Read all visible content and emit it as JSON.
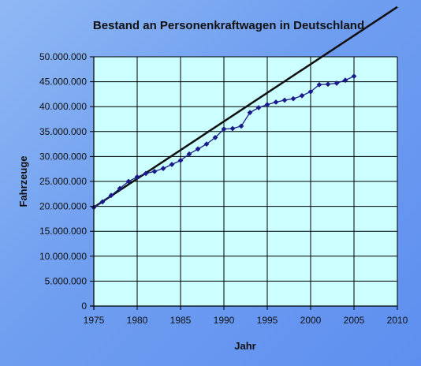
{
  "chart_data": {
    "type": "line",
    "title": "Bestand an Personenkraftwagen in Deutschland",
    "xlabel": "Jahr",
    "ylabel": "Fahrzeuge",
    "xlim": [
      1975,
      2010
    ],
    "ylim": [
      0,
      50000000
    ],
    "x_ticks": [
      1975,
      1980,
      1985,
      1990,
      1995,
      2000,
      2005,
      2010
    ],
    "y_ticks": [
      0,
      5000000,
      10000000,
      15000000,
      20000000,
      25000000,
      30000000,
      35000000,
      40000000,
      45000000,
      50000000
    ],
    "x_tick_labels": [
      "1975",
      "1980",
      "1985",
      "1990",
      "1995",
      "2000",
      "2005",
      "2010"
    ],
    "y_tick_labels": [
      "0",
      "5.000.000",
      "10.000.000",
      "15.000.000",
      "20.000.000",
      "25.000.000",
      "30.000.000",
      "35.000.000",
      "40.000.000",
      "45.000.000",
      "50.000.000"
    ],
    "grid": true,
    "legend": "none",
    "series": [
      {
        "type": "line-markers",
        "color": "#1a1a8c",
        "marker": "diamond",
        "x": [
          1975,
          1976,
          1977,
          1978,
          1979,
          1980,
          1981,
          1982,
          1983,
          1984,
          1985,
          1986,
          1987,
          1988,
          1989,
          1990,
          1991,
          1992,
          1993,
          1994,
          1995,
          1996,
          1997,
          1998,
          1999,
          2000,
          2001,
          2002,
          2003,
          2004,
          2005
        ],
        "y": [
          19800000,
          20900000,
          22200000,
          23600000,
          25000000,
          25900000,
          26600000,
          27000000,
          27600000,
          28400000,
          29200000,
          30500000,
          31500000,
          32500000,
          33800000,
          35500000,
          35600000,
          36100000,
          38800000,
          39800000,
          40400000,
          40900000,
          41300000,
          41600000,
          42200000,
          43000000,
          44400000,
          44500000,
          44700000,
          45300000,
          46100000
        ]
      },
      {
        "type": "trend-line",
        "color": "#111111",
        "x": [
          1975,
          2010
        ],
        "y": [
          19800000,
          60000000
        ]
      }
    ],
    "colors": {
      "plot_background": "#ccffff",
      "grid": "#000000",
      "data_series": "#1a1a8c",
      "trend_line": "#111111"
    }
  }
}
